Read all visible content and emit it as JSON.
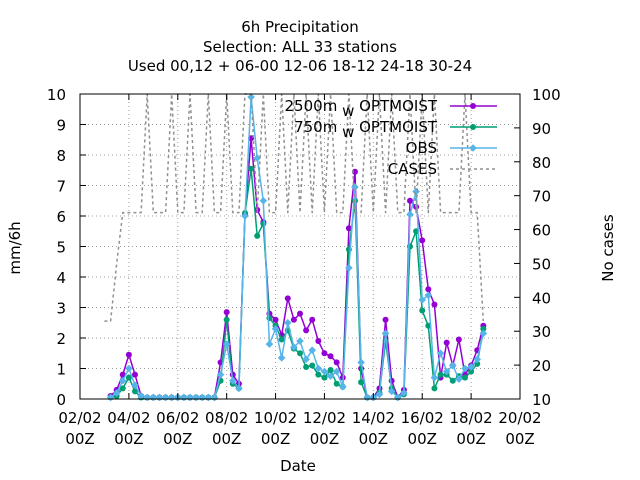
{
  "chart_data": {
    "type": "line",
    "title_lines": [
      "6h Precipitation",
      "Selection: ALL      33 stations",
      "Used  00,12  + 06-00 12-06 18-12 24-18 30-24"
    ],
    "xlabel": "Date",
    "ylabel": "mm/6h",
    "y2label": "No cases",
    "x_unit": "days since 02/02 00Z",
    "xlim": [
      0,
      18
    ],
    "ylim": [
      0,
      10
    ],
    "y2lim": [
      10,
      100
    ],
    "grid": true,
    "legend_position": "top-right",
    "x_ticks": [
      {
        "value": 0,
        "line1": "02/02",
        "line2": "00Z"
      },
      {
        "value": 2,
        "line1": "04/02",
        "line2": "00Z"
      },
      {
        "value": 4,
        "line1": "06/02",
        "line2": "00Z"
      },
      {
        "value": 6,
        "line1": "08/02",
        "line2": "00Z"
      },
      {
        "value": 8,
        "line1": "10/02",
        "line2": "00Z"
      },
      {
        "value": 10,
        "line1": "12/02",
        "line2": "00Z"
      },
      {
        "value": 12,
        "line1": "14/02",
        "line2": "00Z"
      },
      {
        "value": 14,
        "line1": "16/02",
        "line2": "00Z"
      },
      {
        "value": 16,
        "line1": "18/02",
        "line2": "00Z"
      },
      {
        "value": 18,
        "line1": "20/02",
        "line2": "00Z"
      }
    ],
    "y_ticks": [
      0,
      1,
      2,
      3,
      4,
      5,
      6,
      7,
      8,
      9,
      10
    ],
    "y2_ticks": [
      10,
      20,
      30,
      40,
      50,
      60,
      70,
      80,
      90,
      100
    ],
    "series": [
      {
        "name": "2500m  OPTMOIST",
        "name_subscript": "w",
        "color": "#9400d3",
        "marker": "circle",
        "axis": "y",
        "x": [
          1.25,
          1.5,
          1.75,
          2.0,
          2.25,
          2.5,
          2.75,
          3.0,
          3.25,
          3.5,
          3.75,
          4.0,
          4.25,
          4.5,
          4.75,
          5.0,
          5.25,
          5.5,
          5.75,
          6.0,
          6.25,
          6.5,
          6.75,
          7.0,
          7.25,
          7.5,
          7.75,
          8.0,
          8.25,
          8.5,
          8.75,
          9.0,
          9.25,
          9.5,
          9.75,
          10.0,
          10.25,
          10.5,
          10.75,
          11.0,
          11.25,
          11.5,
          11.75,
          12.0,
          12.25,
          12.5,
          12.75,
          13.0,
          13.25,
          13.5,
          13.75,
          14.0,
          14.25,
          14.5,
          14.75,
          15.0,
          15.25,
          15.5,
          15.75,
          16.0,
          16.25,
          16.5
        ],
        "y": [
          0.1,
          0.3,
          0.8,
          1.45,
          0.8,
          0.1,
          0.05,
          0.05,
          0.05,
          0.05,
          0.05,
          0.05,
          0.05,
          0.05,
          0.05,
          0.05,
          0.05,
          0.05,
          1.2,
          2.85,
          0.8,
          0.5,
          6.05,
          8.55,
          6.2,
          5.8,
          2.8,
          2.6,
          2.1,
          3.3,
          2.6,
          2.8,
          2.25,
          2.6,
          1.9,
          1.5,
          1.4,
          1.2,
          0.7,
          5.6,
          7.45,
          1.0,
          0.05,
          0.05,
          0.35,
          2.6,
          0.6,
          0.05,
          0.3,
          6.5,
          6.3,
          5.2,
          3.6,
          3.1,
          0.7,
          1.85,
          1.1,
          1.95,
          0.8,
          1.1,
          1.6,
          2.4
        ]
      },
      {
        "name": "750m  OPTMOIST",
        "name_subscript": "w",
        "color": "#009e73",
        "marker": "circle",
        "axis": "y",
        "x": [
          1.25,
          1.5,
          1.75,
          2.0,
          2.25,
          2.5,
          2.75,
          3.0,
          3.25,
          3.5,
          3.75,
          4.0,
          4.25,
          4.5,
          4.75,
          5.0,
          5.25,
          5.5,
          5.75,
          6.0,
          6.25,
          6.5,
          6.75,
          7.0,
          7.25,
          7.5,
          7.75,
          8.0,
          8.25,
          8.5,
          8.75,
          9.0,
          9.25,
          9.5,
          9.75,
          10.0,
          10.25,
          10.5,
          10.75,
          11.0,
          11.25,
          11.5,
          11.75,
          12.0,
          12.25,
          12.5,
          12.75,
          13.0,
          13.25,
          13.5,
          13.75,
          14.0,
          14.25,
          14.5,
          14.75,
          15.0,
          15.25,
          15.5,
          15.75,
          16.0,
          16.25,
          16.5
        ],
        "y": [
          0.05,
          0.1,
          0.35,
          0.7,
          0.25,
          0.05,
          0.05,
          0.05,
          0.05,
          0.05,
          0.05,
          0.05,
          0.05,
          0.05,
          0.05,
          0.05,
          0.05,
          0.05,
          0.6,
          2.6,
          0.5,
          0.35,
          6.1,
          7.55,
          5.35,
          5.75,
          2.65,
          2.4,
          1.95,
          2.25,
          1.65,
          1.5,
          1.05,
          1.1,
          0.8,
          0.7,
          0.95,
          0.5,
          0.4,
          4.9,
          6.5,
          0.55,
          0.05,
          0.05,
          0.2,
          1.9,
          0.35,
          0.05,
          0.15,
          5.0,
          5.5,
          2.9,
          2.4,
          0.35,
          0.8,
          0.8,
          0.6,
          0.75,
          0.7,
          0.9,
          1.15,
          2.3
        ]
      },
      {
        "name": "OBS",
        "color": "#56b4e9",
        "marker": "diamond",
        "axis": "y",
        "x": [
          1.25,
          1.5,
          1.75,
          2.0,
          2.25,
          2.5,
          2.75,
          3.0,
          3.25,
          3.5,
          3.75,
          4.0,
          4.25,
          4.5,
          4.75,
          5.0,
          5.25,
          5.5,
          5.75,
          6.0,
          6.25,
          6.5,
          6.75,
          7.0,
          7.25,
          7.5,
          7.75,
          8.0,
          8.25,
          8.5,
          8.75,
          9.0,
          9.25,
          9.5,
          9.75,
          10.0,
          10.25,
          10.5,
          10.75,
          11.0,
          11.25,
          11.5,
          11.75,
          12.0,
          12.25,
          12.5,
          12.75,
          13.0,
          13.25,
          13.5,
          13.75,
          14.0,
          14.25,
          14.5,
          14.75,
          15.0,
          15.25,
          15.5,
          15.75,
          16.0,
          16.25,
          16.5
        ],
        "y": [
          0.05,
          0.2,
          0.6,
          1.0,
          0.45,
          0.1,
          0.05,
          0.05,
          0.05,
          0.05,
          0.05,
          0.05,
          0.05,
          0.05,
          0.05,
          0.05,
          0.05,
          0.05,
          0.8,
          1.8,
          0.6,
          0.35,
          6.0,
          9.9,
          7.9,
          6.5,
          1.8,
          2.3,
          1.35,
          2.5,
          1.7,
          1.9,
          1.3,
          1.6,
          1.0,
          0.9,
          0.75,
          0.9,
          0.4,
          4.3,
          6.95,
          1.2,
          0.05,
          0.05,
          0.15,
          2.15,
          0.25,
          0.05,
          0.2,
          6.05,
          6.8,
          3.25,
          3.4,
          0.7,
          1.5,
          0.9,
          1.1,
          0.65,
          1.0,
          1.05,
          1.3,
          2.15
        ]
      },
      {
        "name": "CASES",
        "color": "#909090",
        "style": "dashed",
        "axis": "y2",
        "x": [
          1.0,
          1.25,
          1.5,
          1.75,
          2.0,
          2.25,
          2.5,
          2.75,
          3.0,
          3.25,
          3.5,
          3.75,
          4.0,
          4.25,
          4.5,
          4.75,
          5.0,
          5.25,
          5.5,
          5.75,
          6.0,
          6.25,
          6.5,
          6.75,
          7.0,
          7.25,
          7.5,
          7.75,
          8.0,
          8.25,
          8.5,
          8.75,
          9.0,
          9.25,
          9.5,
          9.75,
          10.0,
          10.25,
          10.5,
          10.75,
          11.0,
          11.25,
          11.5,
          11.75,
          12.0,
          12.25,
          12.5,
          12.75,
          13.0,
          13.25,
          13.5,
          13.75,
          14.0,
          14.25,
          14.5,
          14.75,
          15.0,
          15.25,
          15.5,
          15.75,
          16.0,
          16.25,
          16.5
        ],
        "y": [
          33,
          33,
          50,
          65,
          65,
          65,
          65,
          100,
          65,
          65,
          65,
          100,
          65,
          65,
          100,
          65,
          65,
          100,
          65,
          65,
          100,
          65,
          65,
          100,
          100,
          65,
          100,
          65,
          65,
          100,
          65,
          100,
          65,
          100,
          65,
          100,
          65,
          100,
          65,
          65,
          100,
          65,
          65,
          100,
          65,
          100,
          65,
          100,
          65,
          65,
          100,
          65,
          100,
          65,
          100,
          65,
          65,
          65,
          65,
          100,
          65,
          65,
          33
        ]
      }
    ]
  }
}
